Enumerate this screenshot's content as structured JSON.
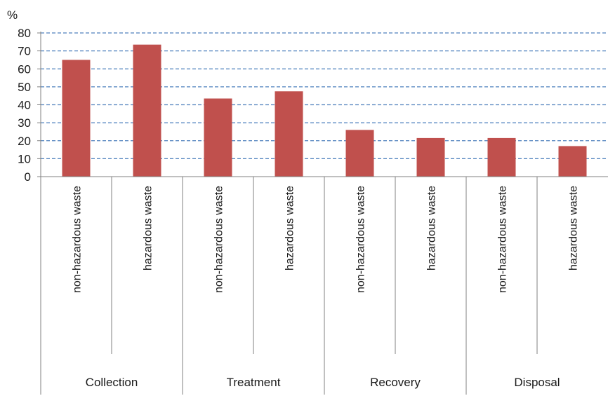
{
  "chart_data": {
    "type": "bar",
    "ylabel": "%",
    "ylim": [
      0,
      80
    ],
    "yticks": [
      0,
      10,
      20,
      30,
      40,
      50,
      60,
      70,
      80
    ],
    "grid": true,
    "legend": "none",
    "bar_color": "#c0504d",
    "grid_color": "#4f81bd",
    "groups": [
      "Collection",
      "Treatment",
      "Recovery",
      "Disposal"
    ],
    "categories": [
      "non-hazardous waste",
      "hazardous waste",
      "non-hazardous waste",
      "hazardous waste",
      "non-hazardous waste",
      "hazardous waste",
      "non-hazardous waste",
      "hazardous waste"
    ],
    "category_group": [
      0,
      0,
      1,
      1,
      2,
      2,
      3,
      3
    ],
    "values": [
      65,
      73.5,
      43.5,
      47.5,
      26,
      21.5,
      21.5,
      17
    ]
  }
}
